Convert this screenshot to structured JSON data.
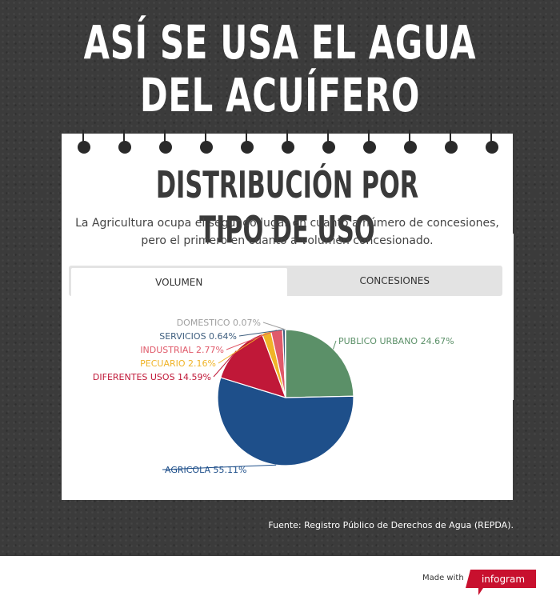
{
  "header": {
    "title": "ASÍ SE USA EL AGUA DEL ACUÍFERO"
  },
  "card": {
    "title": "DISTRIBUCIÓN POR TIPO DE USO",
    "subtitle": "La Agricultura ocupa el segundo lugar en cuanto a número de concesiones, pero el primero en cuanto a volumen concesionado."
  },
  "tabs": [
    {
      "label": "VOLUMEN",
      "active": true
    },
    {
      "label": "CONCESIONES",
      "active": false
    }
  ],
  "chart_data": {
    "type": "pie",
    "unit": "%",
    "slices": [
      {
        "label": "PUBLICO URBANO",
        "value": 24.67,
        "color": "#5b9068"
      },
      {
        "label": "AGRICOLA",
        "value": 55.11,
        "color": "#1e4f8a"
      },
      {
        "label": "DIFERENTES USOS",
        "value": 14.59,
        "color": "#c01838"
      },
      {
        "label": "PECUARIO",
        "value": 2.16,
        "color": "#f0b428"
      },
      {
        "label": "INDUSTRIAL",
        "value": 2.77,
        "color": "#e05a6a"
      },
      {
        "label": "SERVICIOS",
        "value": 0.64,
        "color": "#3f5f7f"
      },
      {
        "label": "DOMESTICO",
        "value": 0.07,
        "color": "#a0a0a0"
      }
    ]
  },
  "footer": {
    "source": "Fuente:  Registro Público de Derechos de Agua (REPDA).",
    "made_with": "Made with",
    "brand": "infogram",
    "brand_color": "#c8102e"
  }
}
